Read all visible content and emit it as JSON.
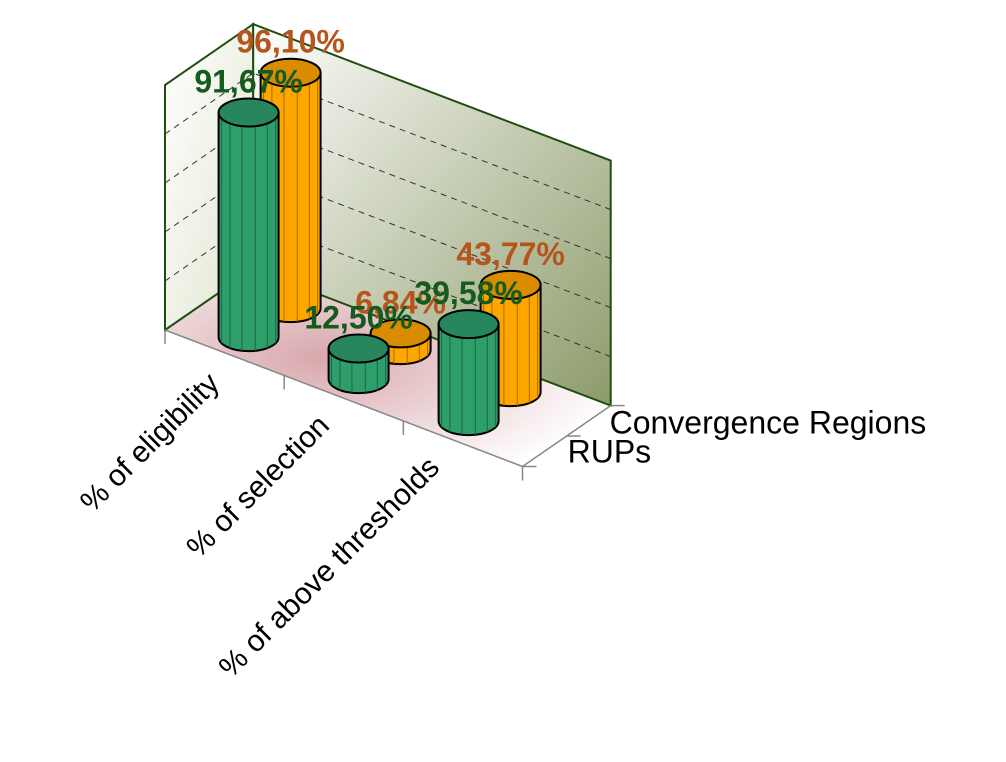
{
  "chart_data": {
    "type": "bar",
    "style": "3d-cylinder",
    "categories": [
      "% of eligibility",
      "% of selection",
      "% of above thresholds"
    ],
    "series": [
      {
        "name": "Convergence Regions",
        "values": [
          96.1,
          6.84,
          43.77
        ],
        "labels": [
          "96,10%",
          "6,84%",
          "43,77%"
        ]
      },
      {
        "name": "RUPs",
        "values": [
          91.67,
          12.5,
          39.58
        ],
        "labels": [
          "91,67%",
          "12,50%",
          "39,58%"
        ]
      }
    ],
    "ylim": [
      0,
      100
    ],
    "grid": true,
    "legend": "none",
    "colors": {
      "Convergence Regions": "#FFA500",
      "RUPs": "#2E9E6B",
      "convergence_label": "#B5541B",
      "rups_label": "#155A1E",
      "frame": "#1F4F10"
    }
  }
}
